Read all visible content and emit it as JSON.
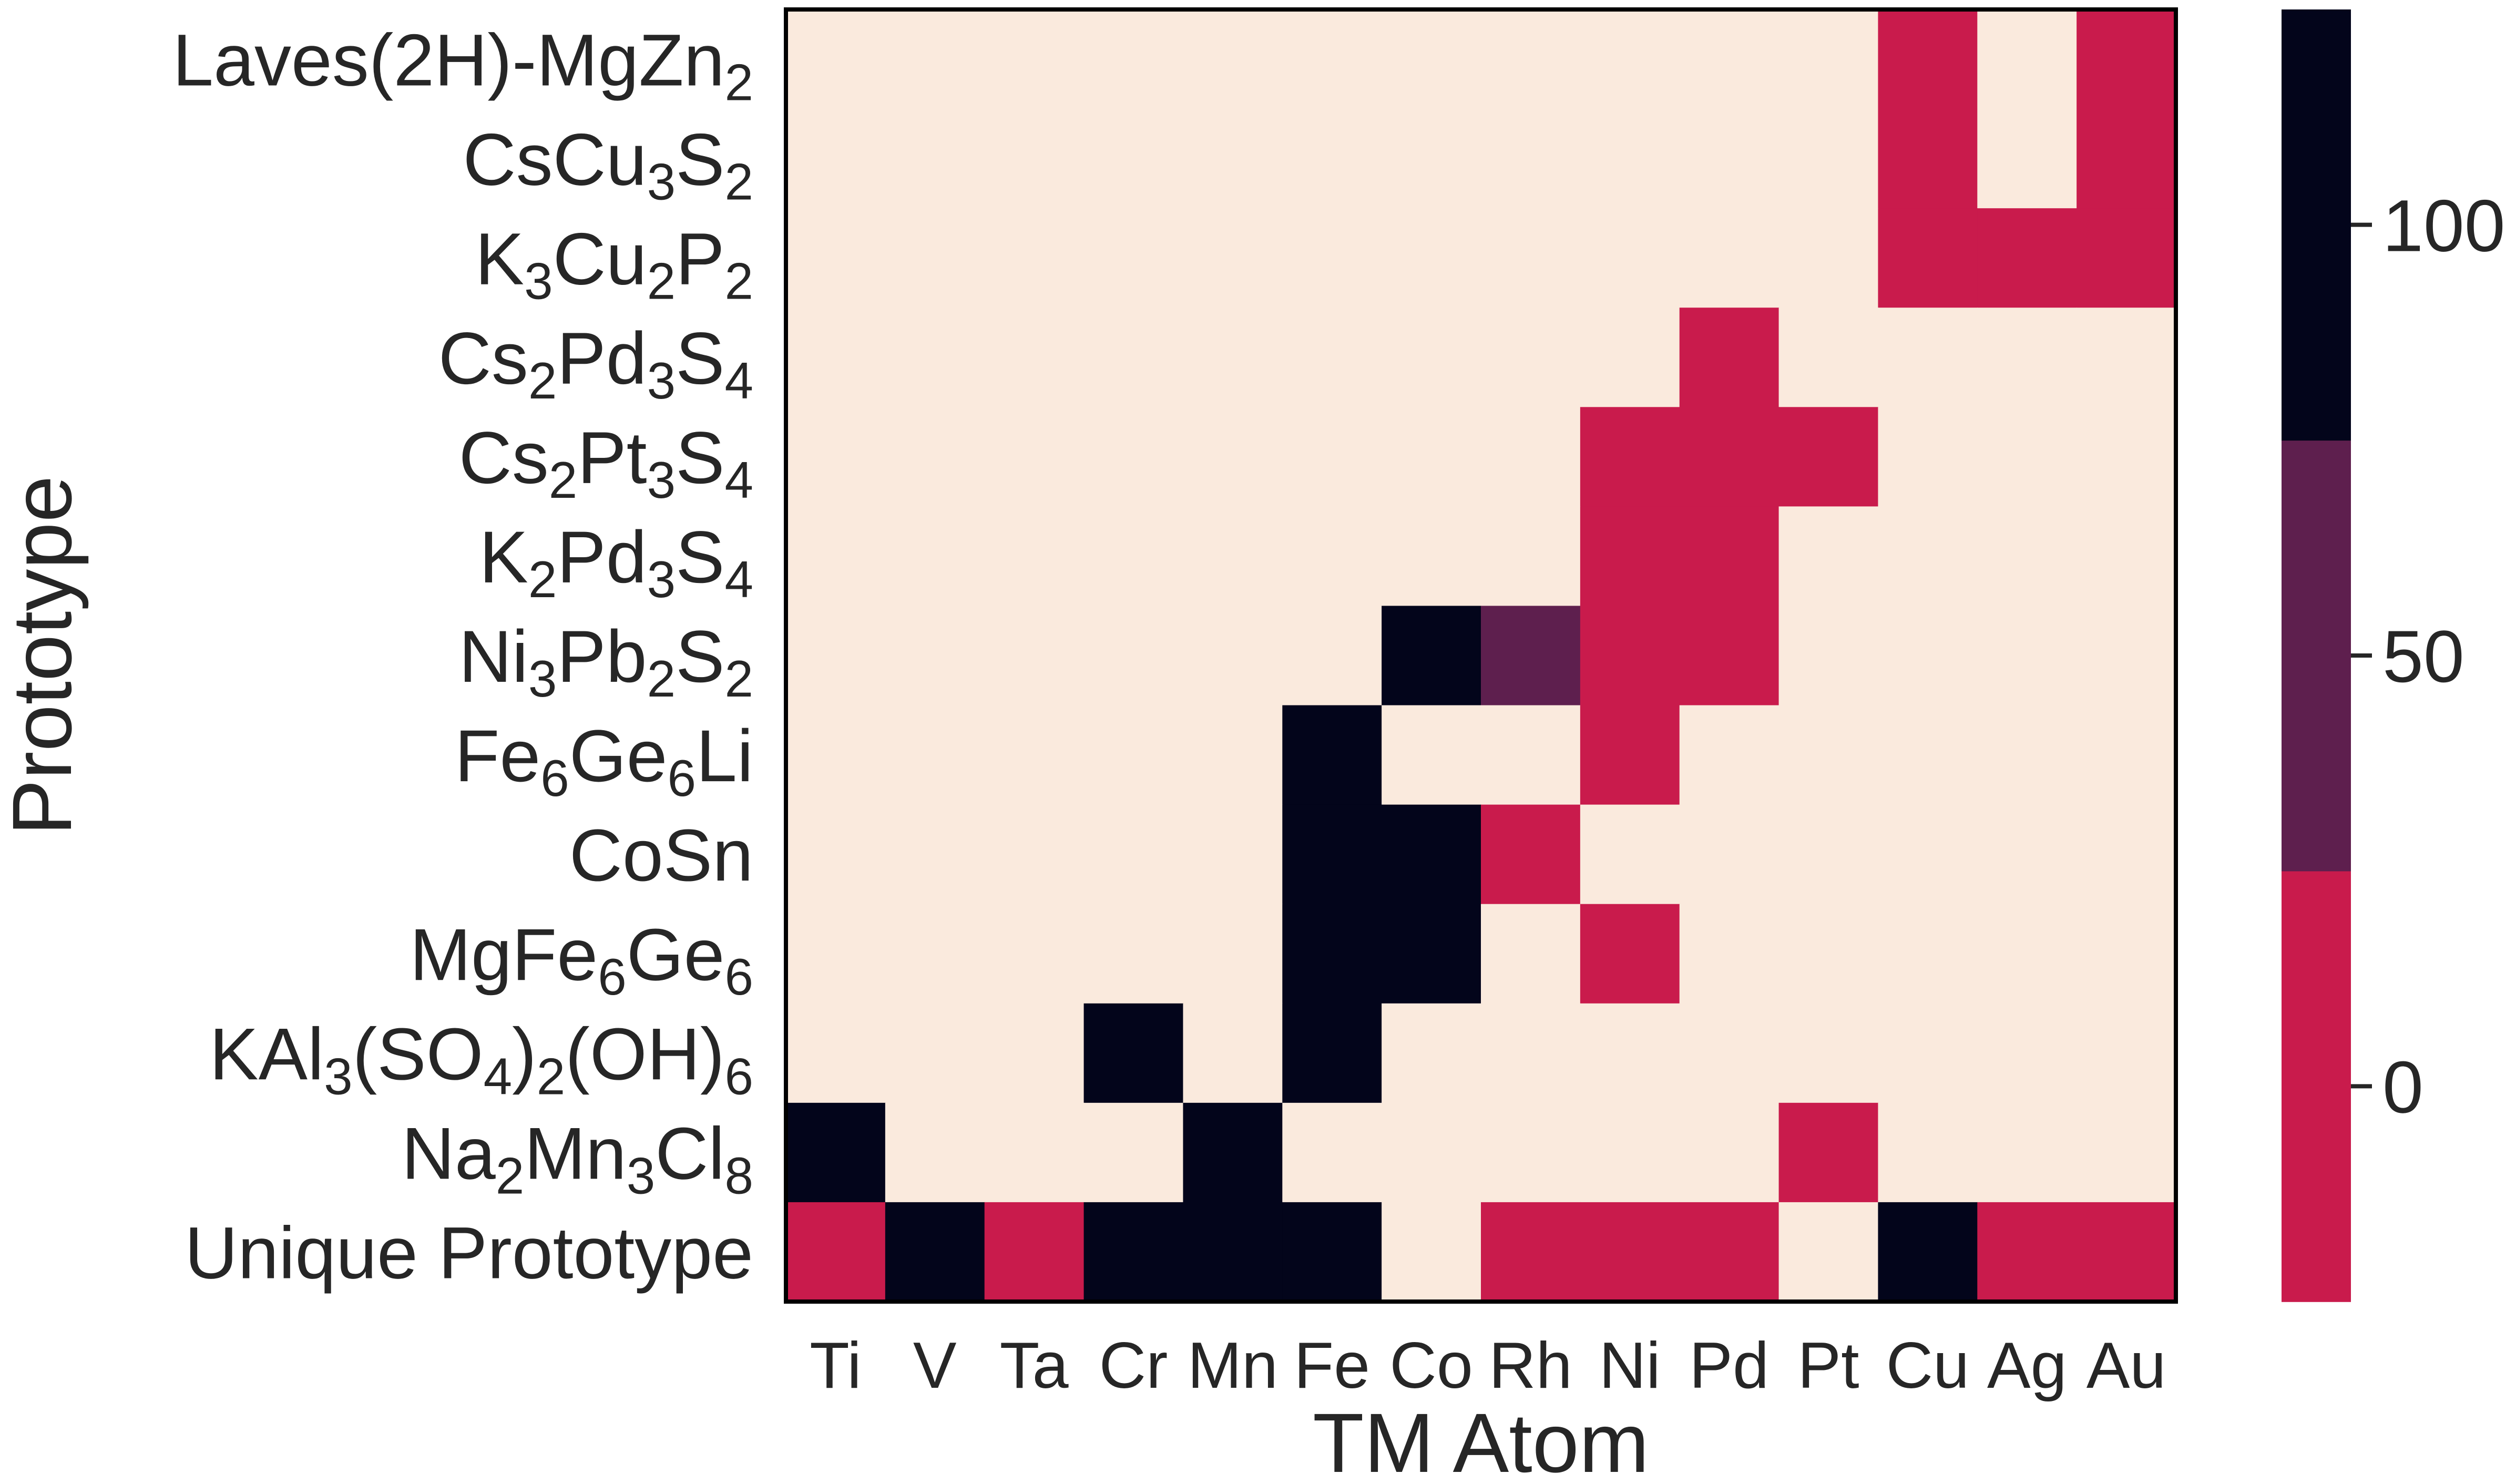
{
  "chart_data": {
    "type": "heatmap",
    "xlabel": "TM Atom",
    "ylabel": "Prototype",
    "x_categories": [
      "Ti",
      "V",
      "Ta",
      "Cr",
      "Mn",
      "Fe",
      "Co",
      "Rh",
      "Ni",
      "Pd",
      "Pt",
      "Cu",
      "Ag",
      "Au"
    ],
    "y_categories": [
      {
        "label": "Laves(2H)-MgZn",
        "parts": [
          [
            "Laves(2H)-MgZn",
            ""
          ],
          [
            "2",
            "sub"
          ]
        ]
      },
      {
        "label": "CsCu3S2",
        "parts": [
          [
            "CsCu",
            ""
          ],
          [
            "3",
            "sub"
          ],
          [
            "S",
            ""
          ],
          [
            "2",
            "sub"
          ]
        ]
      },
      {
        "label": "K3Cu2P2",
        "parts": [
          [
            "K",
            ""
          ],
          [
            "3",
            "sub"
          ],
          [
            "Cu",
            ""
          ],
          [
            "2",
            "sub"
          ],
          [
            "P",
            ""
          ],
          [
            "2",
            "sub"
          ]
        ]
      },
      {
        "label": "Cs2Pd3S4",
        "parts": [
          [
            "Cs",
            ""
          ],
          [
            "2",
            "sub"
          ],
          [
            "Pd",
            ""
          ],
          [
            "3",
            "sub"
          ],
          [
            "S",
            ""
          ],
          [
            "4",
            "sub"
          ]
        ]
      },
      {
        "label": "Cs2Pt3S4",
        "parts": [
          [
            "Cs",
            ""
          ],
          [
            "2",
            "sub"
          ],
          [
            "Pt",
            ""
          ],
          [
            "3",
            "sub"
          ],
          [
            "S",
            ""
          ],
          [
            "4",
            "sub"
          ]
        ]
      },
      {
        "label": "K2Pd3S4",
        "parts": [
          [
            "K",
            ""
          ],
          [
            "2",
            "sub"
          ],
          [
            "Pd",
            ""
          ],
          [
            "3",
            "sub"
          ],
          [
            "S",
            ""
          ],
          [
            "4",
            "sub"
          ]
        ]
      },
      {
        "label": "Ni3Pb2S2",
        "parts": [
          [
            "Ni",
            ""
          ],
          [
            "3",
            "sub"
          ],
          [
            "Pb",
            ""
          ],
          [
            "2",
            "sub"
          ],
          [
            "S",
            ""
          ],
          [
            "2",
            "sub"
          ]
        ]
      },
      {
        "label": "Fe6Ge6Li",
        "parts": [
          [
            "Fe",
            ""
          ],
          [
            "6",
            "sub"
          ],
          [
            "Ge",
            ""
          ],
          [
            "6",
            "sub"
          ],
          [
            "Li",
            ""
          ]
        ]
      },
      {
        "label": "CoSn",
        "parts": [
          [
            "CoSn",
            ""
          ]
        ]
      },
      {
        "label": "MgFe6Ge6",
        "parts": [
          [
            "MgFe",
            ""
          ],
          [
            "6",
            "sub"
          ],
          [
            "Ge",
            ""
          ],
          [
            "6",
            "sub"
          ]
        ]
      },
      {
        "label": "KAl3(SO4)2(OH)6",
        "parts": [
          [
            "KAl",
            ""
          ],
          [
            "3",
            "sub"
          ],
          [
            "(SO",
            ""
          ],
          [
            "4",
            "sub"
          ],
          [
            ")",
            ""
          ],
          [
            "2",
            "sub"
          ],
          [
            "(OH)",
            ""
          ],
          [
            "6",
            "sub"
          ]
        ]
      },
      {
        "label": "Na2Mn3Cl8",
        "parts": [
          [
            "Na",
            ""
          ],
          [
            "2",
            "sub"
          ],
          [
            "Mn",
            ""
          ],
          [
            "3",
            "sub"
          ],
          [
            "Cl",
            ""
          ],
          [
            "8",
            "sub"
          ]
        ]
      },
      {
        "label": "Unique Prototype",
        "parts": [
          [
            "Unique Prototype",
            ""
          ]
        ]
      }
    ],
    "values": [
      [
        null,
        null,
        null,
        null,
        null,
        null,
        null,
        null,
        null,
        null,
        null,
        0,
        null,
        0
      ],
      [
        null,
        null,
        null,
        null,
        null,
        null,
        null,
        null,
        null,
        null,
        null,
        0,
        null,
        0
      ],
      [
        null,
        null,
        null,
        null,
        null,
        null,
        null,
        null,
        null,
        null,
        null,
        0,
        0,
        0
      ],
      [
        null,
        null,
        null,
        null,
        null,
        null,
        null,
        null,
        null,
        0,
        null,
        null,
        null,
        null
      ],
      [
        null,
        null,
        null,
        null,
        null,
        null,
        null,
        null,
        0,
        0,
        0,
        null,
        null,
        null
      ],
      [
        null,
        null,
        null,
        null,
        null,
        null,
        null,
        null,
        0,
        0,
        null,
        null,
        null,
        null
      ],
      [
        null,
        null,
        null,
        null,
        null,
        null,
        100,
        50,
        0,
        0,
        null,
        null,
        null,
        null
      ],
      [
        null,
        null,
        null,
        null,
        null,
        100,
        null,
        null,
        0,
        null,
        null,
        null,
        null,
        null
      ],
      [
        null,
        null,
        null,
        null,
        null,
        100,
        100,
        0,
        null,
        null,
        null,
        null,
        null,
        null
      ],
      [
        null,
        null,
        null,
        null,
        null,
        100,
        100,
        null,
        0,
        null,
        null,
        null,
        null,
        null
      ],
      [
        null,
        null,
        null,
        100,
        null,
        100,
        null,
        null,
        null,
        null,
        null,
        null,
        null,
        null
      ],
      [
        100,
        null,
        null,
        null,
        100,
        null,
        null,
        null,
        null,
        null,
        0,
        null,
        null,
        null
      ],
      [
        0,
        100,
        0,
        100,
        100,
        100,
        null,
        0,
        0,
        0,
        null,
        75,
        0,
        0
      ]
    ],
    "colorbar": {
      "ticks": [
        0,
        50,
        100
      ],
      "range": [
        -25,
        125
      ],
      "bands": [
        {
          "from": -25,
          "to": 25,
          "color": "#c91b4c"
        },
        {
          "from": 25,
          "to": 75,
          "color": "#5e1f4e"
        },
        {
          "from": 75,
          "to": 125,
          "color": "#03051b"
        }
      ]
    },
    "empty_color": "#faeadd",
    "grid": false
  }
}
